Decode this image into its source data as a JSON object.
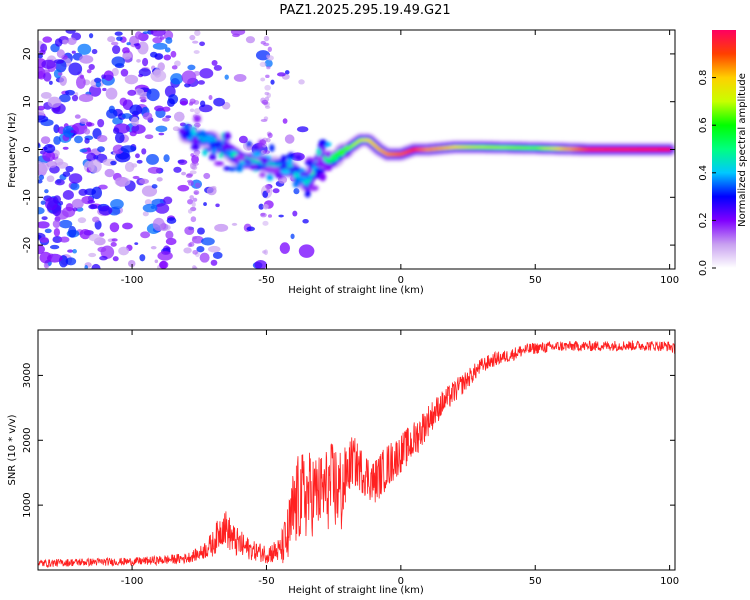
{
  "title": "PAZ1.2025.295.19.49.G21",
  "chart_data": [
    {
      "type": "heatmap",
      "title": "PAZ1.2025.295.19.49.G21",
      "xlabel": "Height of straight line (km)",
      "ylabel": "Frequency (Hz)",
      "xlim": [
        -135,
        102
      ],
      "ylim": [
        -25,
        25
      ],
      "xticks": [
        -100,
        -50,
        0,
        50,
        100
      ],
      "yticks": [
        20,
        10,
        0,
        -10,
        -20
      ],
      "xtick_labels": [
        "-100",
        "-50",
        "0",
        "50",
        "100"
      ],
      "ytick_labels": [
        "20",
        "10",
        "0",
        "-10",
        "-20"
      ],
      "grid": false,
      "colorbar": {
        "label": "Normalized spectral amplitude",
        "range": [
          0,
          1
        ],
        "ticks": [
          0.0,
          0.2,
          0.4,
          0.6,
          0.8
        ],
        "tick_labels": [
          "0.0",
          "0.2",
          "0.4",
          "0.6",
          "0.8"
        ],
        "colormap": [
          "#ffffff",
          "#c8a0f0",
          "#8000ff",
          "#0000ff",
          "#00c8ff",
          "#00ff80",
          "#00ff00",
          "#c8ff00",
          "#ffd000",
          "#ff4000",
          "#ff0060"
        ]
      },
      "ridge_centerline": {
        "height_km": [
          -80,
          -70,
          -60,
          -50,
          -40,
          -35,
          -30,
          -25,
          -20,
          -15,
          -12,
          -8,
          -5,
          0,
          5,
          10,
          20,
          30,
          50,
          70,
          100
        ],
        "frequency_hz": [
          3,
          2,
          -2,
          -3,
          -4,
          -7,
          -2,
          -2,
          0,
          2,
          2,
          0,
          -1,
          -1,
          0,
          0,
          0.5,
          0.5,
          0.3,
          0,
          0
        ],
        "amplitude": [
          0.3,
          0.35,
          0.4,
          0.35,
          0.35,
          0.35,
          0.45,
          0.5,
          0.55,
          0.65,
          0.7,
          0.75,
          0.8,
          0.85,
          0.9,
          0.8,
          0.7,
          0.6,
          0.55,
          0.9,
          0.95
        ]
      }
    },
    {
      "type": "line",
      "xlabel": "Height of straight line (km)",
      "ylabel": "SNR (10 * v/v)",
      "xlim": [
        -135,
        102
      ],
      "ylim": [
        0,
        3700
      ],
      "xticks": [
        -100,
        -50,
        0,
        50,
        100
      ],
      "yticks": [
        1000,
        2000,
        3000
      ],
      "xtick_labels": [
        "-100",
        "-50",
        "0",
        "50",
        "100"
      ],
      "ytick_labels": [
        "1000",
        "2000",
        "3000"
      ],
      "grid": false,
      "series": [
        {
          "name": "SNR",
          "color": "#ff2020",
          "x": [
            -135,
            -120,
            -100,
            -90,
            -80,
            -75,
            -70,
            -66,
            -62,
            -58,
            -55,
            -50,
            -45,
            -42,
            -40,
            -38,
            -35,
            -30,
            -25,
            -22,
            -20,
            -18,
            -15,
            -10,
            -5,
            0,
            5,
            10,
            15,
            20,
            25,
            30,
            35,
            40,
            45,
            50,
            60,
            70,
            80,
            90,
            100,
            102
          ],
          "y": [
            100,
            120,
            130,
            150,
            180,
            250,
            400,
            700,
            450,
            350,
            300,
            250,
            300,
            500,
            900,
            1100,
            1150,
            1200,
            1300,
            1200,
            1500,
            1700,
            1550,
            1350,
            1600,
            1800,
            2000,
            2300,
            2550,
            2750,
            2950,
            3150,
            3250,
            3300,
            3380,
            3420,
            3450,
            3450,
            3460,
            3460,
            3450,
            3400
          ],
          "noise_amplitude": [
            60,
            60,
            60,
            70,
            80,
            100,
            200,
            300,
            250,
            200,
            150,
            150,
            200,
            500,
            700,
            700,
            700,
            600,
            700,
            700,
            400,
            400,
            350,
            350,
            350,
            300,
            300,
            250,
            200,
            180,
            150,
            120,
            110,
            100,
            100,
            90,
            80,
            80,
            80,
            80,
            80,
            80
          ]
        }
      ]
    }
  ]
}
